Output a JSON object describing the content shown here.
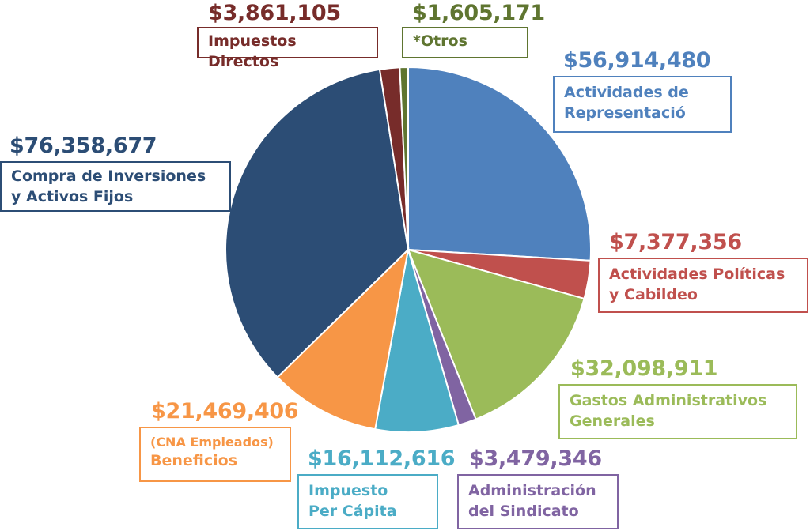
{
  "chart_data": {
    "type": "pie",
    "start_angle_deg": 0,
    "direction": "clockwise",
    "slices": [
      {
        "key": "actividades_representacion",
        "amount": "$56,914,480",
        "value": 56914480,
        "label_lines": [
          "Actividades de",
          "Representació"
        ],
        "color": "#4F81BD"
      },
      {
        "key": "actividades_politicas",
        "amount": "$7,377,356",
        "value": 7377356,
        "label_lines": [
          "Actividades Políticas",
          "y Cabildeo"
        ],
        "color": "#C0504D"
      },
      {
        "key": "gastos_administrativos",
        "amount": "$32,098,911",
        "value": 32098911,
        "label_lines": [
          "Gastos Administrativos",
          "Generales"
        ],
        "color": "#9BBB59"
      },
      {
        "key": "administracion_sindicato",
        "amount": "$3,479,346",
        "value": 3479346,
        "label_lines": [
          "Administración",
          "del Sindicato"
        ],
        "color": "#8064A2"
      },
      {
        "key": "impuesto_per_capita",
        "amount": "$16,112,616",
        "value": 16112616,
        "label_lines": [
          "Impuesto",
          "Per Cápita"
        ],
        "color": "#4BACC6"
      },
      {
        "key": "beneficios",
        "amount": "$21,469,406",
        "value": 21469406,
        "label_sub": "(CNA Empleados)",
        "label_lines": [
          "Beneficios"
        ],
        "color": "#F79646"
      },
      {
        "key": "compra_inversiones",
        "amount": "$76,358,677",
        "value": 76358677,
        "label_lines": [
          "Compra de Inversiones",
          "y Activos Fijos"
        ],
        "color": "#2C4D75"
      },
      {
        "key": "impuestos_directos",
        "amount": "$3,861,105",
        "value": 3861105,
        "label_lines": [
          "Impuestos Directos"
        ],
        "color": "#772C2A"
      },
      {
        "key": "otros",
        "amount": "$1,605,171",
        "value": 1605171,
        "label_lines": [
          "*Otros"
        ],
        "color": "#5F7530"
      }
    ]
  }
}
